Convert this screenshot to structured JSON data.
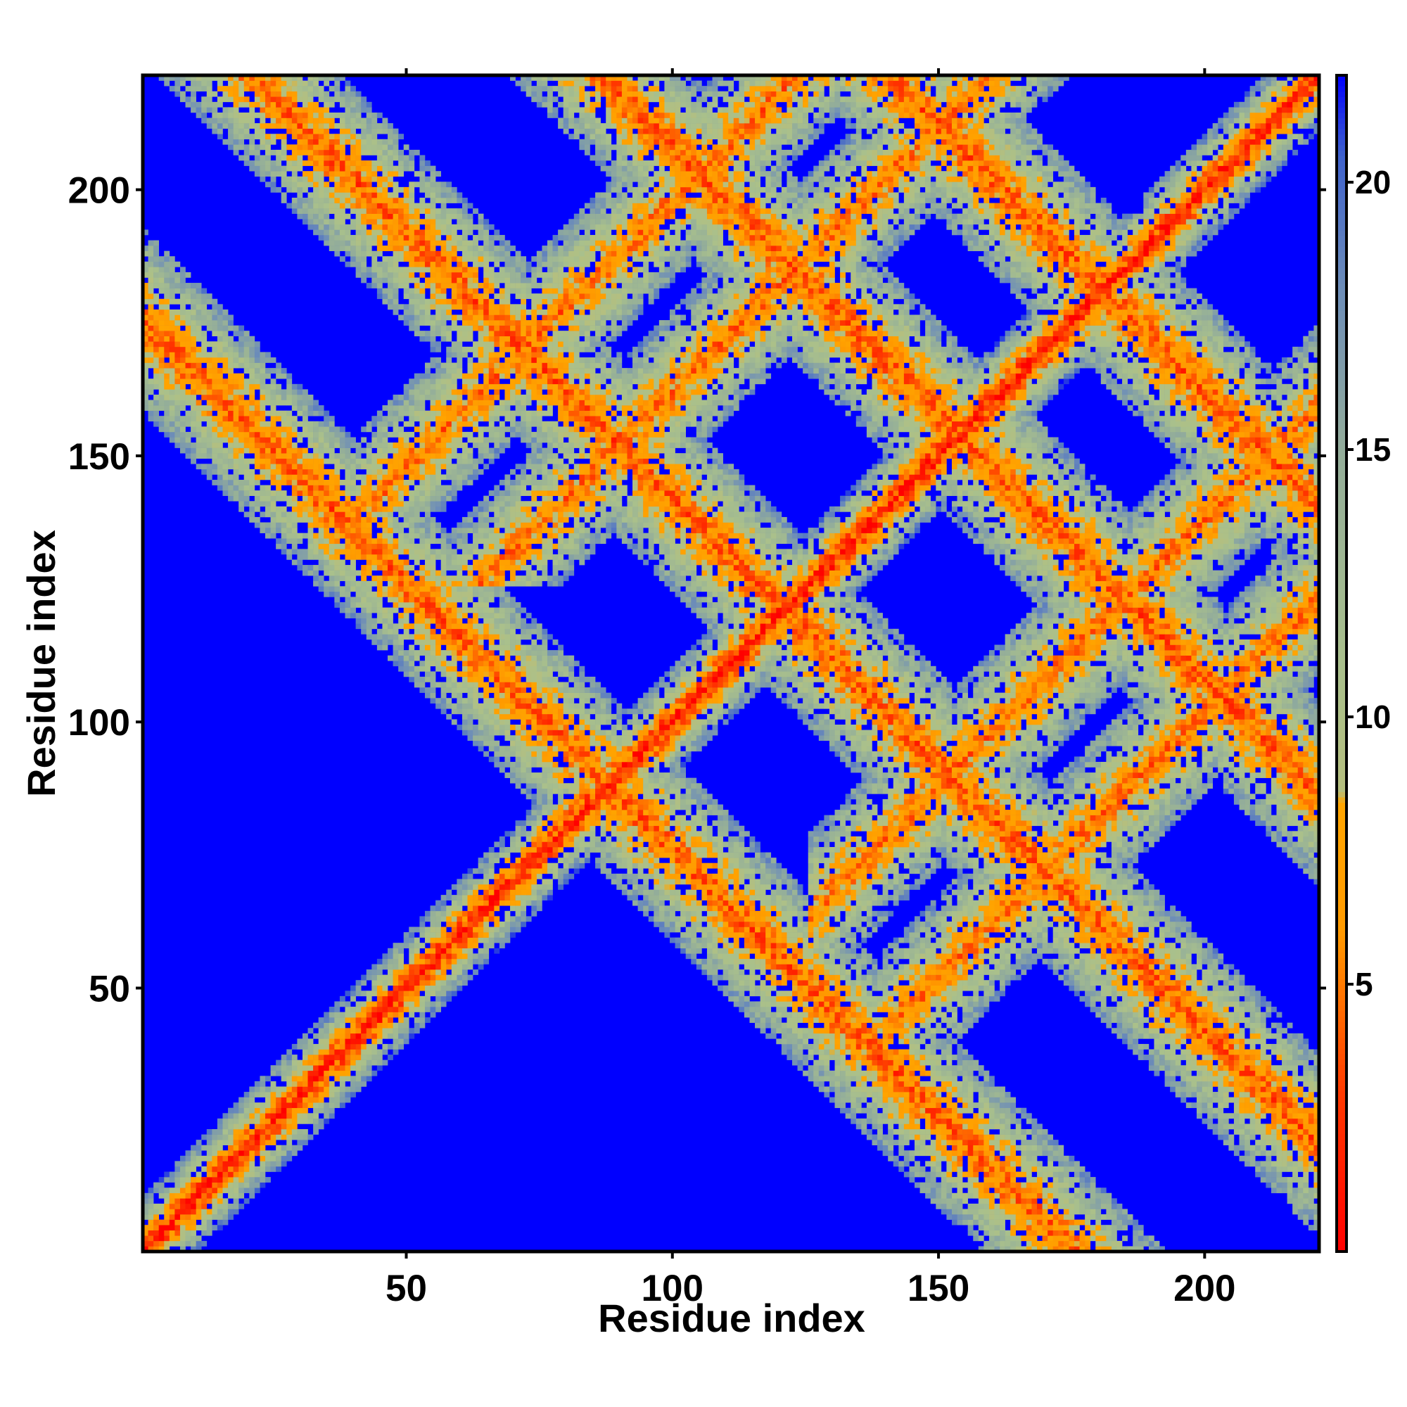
{
  "chart_data": {
    "type": "heatmap",
    "title": "",
    "xlabel": "Residue index",
    "ylabel": "Residue index",
    "xlim": [
      1,
      221
    ],
    "ylim": [
      1,
      221
    ],
    "x_ticks": [
      50,
      100,
      150,
      200
    ],
    "x_tick_labels": [
      "50",
      "100",
      "150",
      "200"
    ],
    "y_ticks": [
      50,
      100,
      150,
      200
    ],
    "y_tick_labels": [
      "50",
      "100",
      "150",
      "200"
    ],
    "grid": false,
    "colorbar": {
      "placement": "right",
      "range": [
        0,
        22
      ],
      "ticks": [
        5,
        10,
        15,
        20
      ],
      "tick_labels": [
        "5",
        "10",
        "15",
        "20"
      ],
      "colors": [
        {
          "value": 0,
          "color": "#ff0000"
        },
        {
          "value": 3,
          "color": "#ff3a00"
        },
        {
          "value": 6,
          "color": "#ff9a00"
        },
        {
          "value": 8.4,
          "color": "#ffa500"
        },
        {
          "value": 8.6,
          "color": "#b5bf7e"
        },
        {
          "value": 11,
          "color": "#a9c08c"
        },
        {
          "value": 15,
          "color": "#93ad9a"
        },
        {
          "value": 18,
          "color": "#6d8db8"
        },
        {
          "value": 20.5,
          "color": "#3f62cc"
        },
        {
          "value": 22,
          "color": "#0000ff"
        }
      ],
      "background_color": "#0000ff"
    },
    "distance_field": {
      "description_values": "approximate pairwise residue distances (colorbar units); symmetric matrix",
      "diagonal_band_halfwidth": 10,
      "ridges": [
        {
          "anchor": 88,
          "axis": "sum",
          "sum": 176,
          "from": 57,
          "to": 118
        },
        {
          "anchor": 80,
          "axis": "sum",
          "sum": 242,
          "from": 108,
          "to": 138
        },
        {
          "anchor": 0,
          "axis": "sum",
          "sum": 308,
          "from": 100,
          "to": 208
        },
        {
          "anchor": 0,
          "axis": "sum",
          "sum": 362,
          "from": 143,
          "to": 221
        },
        {
          "anchor": 0,
          "axis": "diff",
          "diff": 98,
          "from": 140,
          "to": 221
        },
        {
          "anchor": 0,
          "axis": "diff",
          "diff": 62,
          "from": 126,
          "to": 221
        }
      ]
    }
  }
}
